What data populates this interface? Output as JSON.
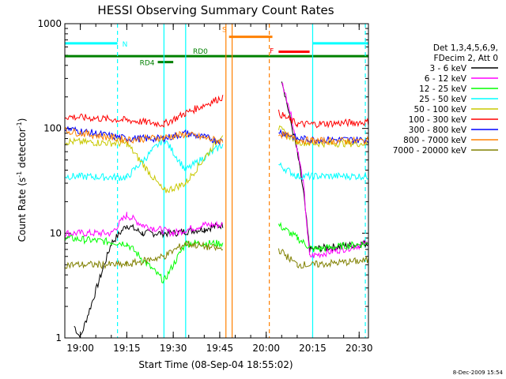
{
  "chart_data": {
    "type": "line",
    "title": "HESSI Observing Summary Count Rates",
    "xlabel": "Start Time (08-Sep-04 18:55:02)",
    "ylabel_main": "Count Rate (s",
    "ylabel_sup": "-1",
    "ylabel_mid": " detector",
    "ylabel_end": ")",
    "y_scale": "log",
    "ylim": [
      1,
      1000
    ],
    "x_range_minutes": [
      "18:55",
      "20:33"
    ],
    "x_tick_labels": [
      "19:00",
      "19:15",
      "19:30",
      "19:45",
      "20:00",
      "20:15",
      "20:30"
    ],
    "y_tick_labels": [
      "1",
      "10",
      "100",
      "1000"
    ],
    "date_stamp": "8-Dec-2009 15:54",
    "legend_header": [
      "Det 1,3,4,5,6,9,",
      "FDecim 2, Att 0"
    ],
    "legend_placement": "right",
    "series": [
      {
        "name": "3 - 6 keV",
        "color": "#000000",
        "points": [
          [
            "18:58",
            1.3
          ],
          [
            "19:00",
            1
          ],
          [
            "19:10",
            8
          ],
          [
            "19:15",
            12
          ],
          [
            "19:20",
            10
          ],
          [
            "19:30",
            10
          ],
          [
            "19:40",
            11
          ],
          [
            "19:46",
            12
          ],
          [
            "20:05",
            300
          ],
          [
            "20:10",
            60
          ],
          [
            "20:12",
            25
          ],
          [
            "20:14",
            7
          ],
          [
            "20:33",
            8
          ]
        ]
      },
      {
        "name": "6 - 12 keV",
        "color": "#ff00ff",
        "points": [
          [
            "18:55",
            10
          ],
          [
            "19:10",
            10
          ],
          [
            "19:15",
            15
          ],
          [
            "19:20",
            12
          ],
          [
            "19:30",
            10
          ],
          [
            "19:40",
            12
          ],
          [
            "19:46",
            12
          ],
          [
            "20:05",
            280
          ],
          [
            "20:08",
            140
          ],
          [
            "20:12",
            30
          ],
          [
            "20:14",
            6
          ],
          [
            "20:33",
            8
          ]
        ]
      },
      {
        "name": "12 - 25 keV",
        "color": "#00ff00",
        "points": [
          [
            "18:55",
            9
          ],
          [
            "19:15",
            8
          ],
          [
            "19:27",
            3.5
          ],
          [
            "19:34",
            8
          ],
          [
            "19:46",
            8
          ],
          [
            "20:04",
            12
          ],
          [
            "20:10",
            9
          ],
          [
            "20:15",
            7
          ],
          [
            "20:33",
            8
          ]
        ]
      },
      {
        "name": "25 - 50 keV",
        "color": "#00ffff",
        "points": [
          [
            "18:55",
            35
          ],
          [
            "19:15",
            34
          ],
          [
            "19:27",
            80
          ],
          [
            "19:34",
            40
          ],
          [
            "19:46",
            70
          ],
          [
            "20:04",
            45
          ],
          [
            "20:10",
            35
          ],
          [
            "20:15",
            35
          ],
          [
            "20:33",
            35
          ]
        ]
      },
      {
        "name": "50 - 100 keV",
        "color": "#c8c800",
        "points": [
          [
            "18:55",
            75
          ],
          [
            "19:15",
            72
          ],
          [
            "19:27",
            25
          ],
          [
            "19:34",
            30
          ],
          [
            "19:46",
            90
          ],
          [
            "20:04",
            100
          ],
          [
            "20:10",
            75
          ],
          [
            "20:15",
            72
          ],
          [
            "20:33",
            72
          ]
        ]
      },
      {
        "name": "100 - 300 keV",
        "color": "#ff0000",
        "points": [
          [
            "18:55",
            130
          ],
          [
            "19:15",
            120
          ],
          [
            "19:27",
            110
          ],
          [
            "19:34",
            140
          ],
          [
            "19:46",
            200
          ],
          [
            "20:04",
            140
          ],
          [
            "20:10",
            110
          ],
          [
            "20:15",
            110
          ],
          [
            "20:33",
            115
          ]
        ]
      },
      {
        "name": "300 - 800 keV",
        "color": "#0000ff",
        "points": [
          [
            "18:55",
            100
          ],
          [
            "19:15",
            80
          ],
          [
            "19:27",
            80
          ],
          [
            "19:34",
            90
          ],
          [
            "19:46",
            75
          ],
          [
            "20:04",
            95
          ],
          [
            "20:10",
            80
          ],
          [
            "20:15",
            78
          ],
          [
            "20:33",
            78
          ]
        ]
      },
      {
        "name": "800 - 7000 keV",
        "color": "#ff8000",
        "points": [
          [
            "18:55",
            95
          ],
          [
            "19:15",
            78
          ],
          [
            "19:27",
            82
          ],
          [
            "19:34",
            88
          ],
          [
            "19:46",
            75
          ],
          [
            "20:04",
            90
          ],
          [
            "20:10",
            78
          ],
          [
            "20:15",
            76
          ],
          [
            "20:33",
            76
          ]
        ]
      },
      {
        "name": "7000 - 20000 keV",
        "color": "#808000",
        "points": [
          [
            "18:55",
            5
          ],
          [
            "19:15",
            5
          ],
          [
            "19:27",
            6
          ],
          [
            "19:34",
            8
          ],
          [
            "19:46",
            7
          ],
          [
            "20:04",
            7
          ],
          [
            "20:10",
            5
          ],
          [
            "20:15",
            5
          ],
          [
            "20:33",
            5.5
          ]
        ]
      }
    ],
    "flags": [
      {
        "label": "N",
        "color": "#00ffff",
        "level": 650,
        "segments": [
          [
            "18:55",
            "19:12"
          ],
          [
            "20:15",
            "20:33"
          ]
        ]
      },
      {
        "label": "S",
        "color": "#ff8000",
        "level": 750,
        "segments": [
          [
            "19:48",
            "20:02"
          ]
        ]
      },
      {
        "label": "F",
        "color": "#ff0000",
        "level": 540,
        "segments": [
          [
            "20:04",
            "20:14"
          ]
        ]
      },
      {
        "label": "RD0",
        "color": "#008000",
        "level": 490,
        "segments": [
          [
            "18:55",
            "20:33"
          ]
        ]
      },
      {
        "label": "RD4",
        "color": "#008000",
        "level": 430,
        "segments": [
          [
            "19:25",
            "19:30"
          ]
        ]
      }
    ],
    "vertical_lines": [
      {
        "time": "19:12",
        "color": "#00ffff",
        "style": "dashed"
      },
      {
        "time": "19:27",
        "color": "#00ffff",
        "style": "solid"
      },
      {
        "time": "19:34",
        "color": "#00ffff",
        "style": "solid"
      },
      {
        "time": "19:47",
        "color": "#ff8000",
        "style": "solid"
      },
      {
        "time": "19:49",
        "color": "#ff8000",
        "style": "solid"
      },
      {
        "time": "20:01",
        "color": "#ff8000",
        "style": "dashed"
      },
      {
        "time": "20:15",
        "color": "#00ffff",
        "style": "solid"
      },
      {
        "time": "20:32",
        "color": "#00ffff",
        "style": "dashed"
      }
    ]
  }
}
